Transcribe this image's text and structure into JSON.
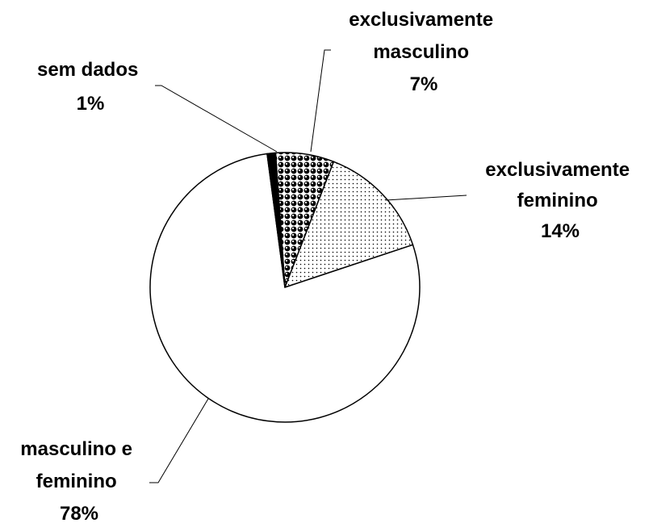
{
  "chart_data": {
    "type": "pie",
    "title": "",
    "start_angle_deg": -4,
    "direction": "clockwise",
    "legend": "none",
    "slices": [
      {
        "label_lines": [
          "exclusivamente",
          "masculino"
        ],
        "pct_label": "7%",
        "value": 7,
        "pattern": "checker"
      },
      {
        "label_lines": [
          "exclusivamente",
          "feminino"
        ],
        "pct_label": "14%",
        "value": 14,
        "pattern": "dots"
      },
      {
        "label_lines": [
          "masculino e",
          "feminino"
        ],
        "pct_label": "78%",
        "value": 78,
        "pattern": "none"
      },
      {
        "label_lines": [
          "sem dados"
        ],
        "pct_label": "1%",
        "value": 1,
        "pattern": "solid-black"
      }
    ]
  }
}
